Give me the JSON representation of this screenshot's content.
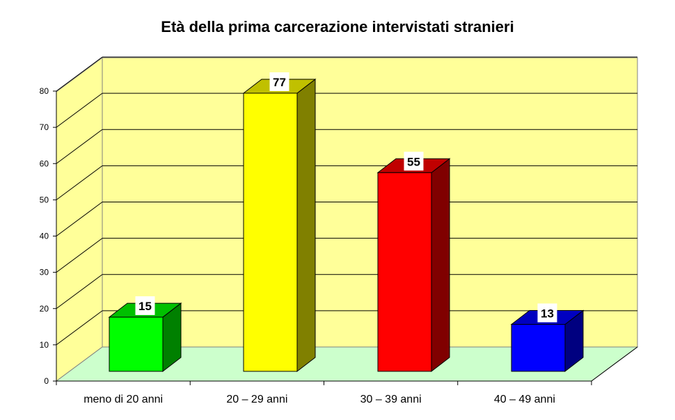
{
  "chart_data": {
    "type": "bar",
    "title": "Età della prima carcerazione intervistati stranieri",
    "categories": [
      "meno di 20 anni",
      "20 – 29 anni",
      "30 – 39 anni",
      "40 – 49 anni"
    ],
    "values": [
      15,
      77,
      55,
      13
    ],
    "xlabel": "",
    "ylabel": "",
    "ylim": [
      0,
      80
    ],
    "yticks": [
      0,
      10,
      20,
      30,
      40,
      50,
      60,
      70,
      80
    ],
    "grid": true,
    "legend": "none",
    "style": "3d-column",
    "colors": {
      "front": [
        "#00ff00",
        "#ffff00",
        "#ff0000",
        "#0000ff"
      ],
      "top": [
        "#00c000",
        "#c0c000",
        "#c00000",
        "#0000c0"
      ],
      "side": [
        "#008000",
        "#808000",
        "#800000",
        "#000080"
      ],
      "walls": "#ffff99",
      "floor": "#ccffcc"
    }
  }
}
